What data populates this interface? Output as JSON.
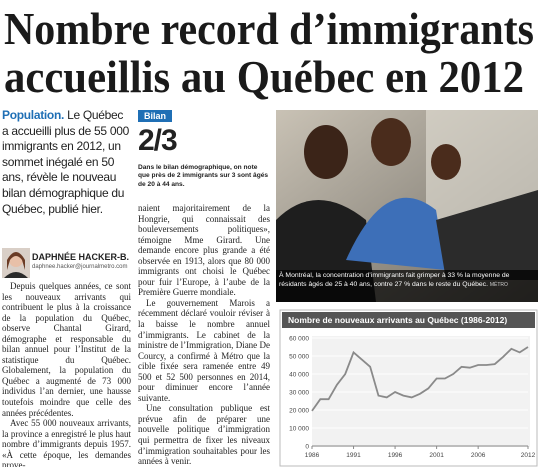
{
  "headline": [
    "Nombre record d’immigrants",
    "accueillis au Québec en 2012"
  ],
  "lead": {
    "label": "Population.",
    "text": " Le Québec a accueilli plus de 55 000 immigrants en 2012, un sommet inégalé en 50 ans, révèle le nouveau bilan démographique du Québec, publié hier."
  },
  "byline": {
    "name": "DAPHNÉE HACKER-B.",
    "email": "daphnee.hacker@journalmetro.com"
  },
  "body": {
    "column1": [
      "Depuis quelques années, ce sont les nouveaux arrivants qui contribuent le plus à la croissance de la population du Québec, observe Chantal Girard, démographe et responsable du bilan annuel pour l’Institut de la statistique du Québec. Globalement, la population du Québec a augmenté de 73 000 individus l’an dernier, une hausse toutefois moindre que celle des années précédentes.",
      "Avec 55 000 nouveaux arrivants, la province a enregistré le plus haut nombre d’immigrants depuis 1957. «À cette époque, les demandes prove-"
    ],
    "column2": [
      "naient majoritairement de la Hongrie, qui connaissait des bouleversements politiques», témoigne Mme Girard. Une demande encore plus grande a été observée en 1913, alors que 80 000 immigrants ont choisi le Québec pour fuir l’Europe, à l’aube de la Première Guerre mondiale.",
      "Le gouvernement Marois a récemment déclaré vouloir réviser à la baisse le nombre annuel d’immigrants. Le cabinet de la ministre de l’Immigration, Diane De Courcy, a confirmé à Métro que la cible fixée sera ramenée entre 49 500 et 52 500 personnes en 2014, pour diminuer encore l’année suivante.",
      "Une consultation publique est prévue afin de préparer une nouvelle politique d’immigration qui permettra de fixer les niveaux d’immigration souhaitables pour les années à venir."
    ]
  },
  "sidebar": {
    "label": "Bilan",
    "figure": "2/3",
    "text": "Dans le bilan démographique, on note que près de 2 immigrants sur 3 sont âgés de 20 à 44 ans."
  },
  "photo": {
    "caption": "À Montréal, la concentration d’immigrants fait grimper à 33 % la moyenne de résidants âgés de 25 à 40 ans, contre 27 % dans le reste du Québec.",
    "credit": "MÉTRO"
  },
  "chart_data": {
    "type": "line",
    "title": "Nombre de nouveaux arrivants au Québec (1986-2012)",
    "x": [
      1986,
      1987,
      1988,
      1989,
      1990,
      1991,
      1992,
      1993,
      1994,
      1995,
      1996,
      1997,
      1998,
      1999,
      2000,
      2001,
      2002,
      2003,
      2004,
      2005,
      2006,
      2007,
      2008,
      2009,
      2010,
      2011,
      2012
    ],
    "values": [
      19500,
      26000,
      26000,
      34000,
      40000,
      52000,
      48000,
      44000,
      28000,
      27000,
      30000,
      28000,
      27000,
      29000,
      32000,
      37500,
      37500,
      40000,
      44000,
      43500,
      45000,
      45000,
      45500,
      49500,
      54000,
      52000,
      55000
    ],
    "color": "#8a8a8a",
    "xlim": [
      1986,
      2012
    ],
    "xticks": [
      1986,
      1991,
      1996,
      2001,
      2006,
      2012
    ],
    "ylim": [
      0,
      60000
    ],
    "yticks": [
      0,
      {
        "value": 10000,
        "label": "10 000"
      },
      {
        "value": 20000,
        "label": "20 000"
      },
      {
        "value": 30000,
        "label": "30 000"
      },
      {
        "value": 40000,
        "label": "40 000"
      },
      {
        "value": 50000,
        "label": "50 000"
      },
      {
        "value": 60000,
        "label": "60 000"
      }
    ],
    "grid": true
  }
}
